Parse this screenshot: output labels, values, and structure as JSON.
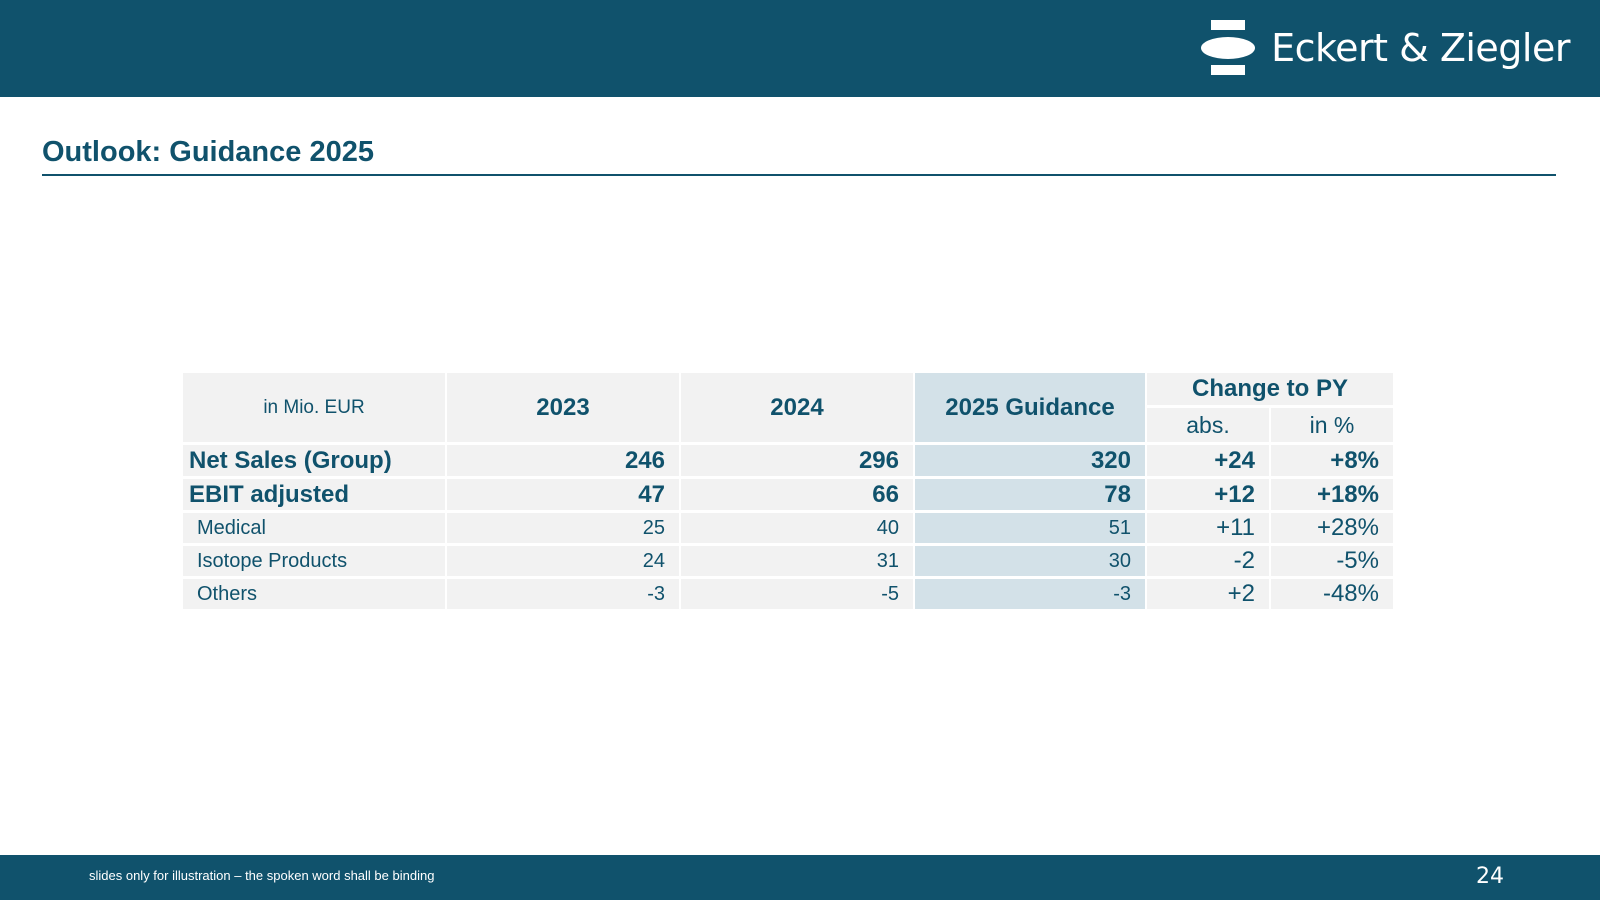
{
  "header": {
    "brand_name": "Eckert & Ziegler",
    "logo_icon": "eckert-ziegler-logo-mark",
    "bar_color": "#10526c"
  },
  "title": "Outlook: Guidance 2025",
  "table": {
    "unit_label": "in Mio. EUR",
    "year_2023": "2023",
    "year_2024": "2024",
    "guidance_label": "2025 Guidance",
    "change_label": "Change to PY",
    "abs_label": "abs.",
    "pct_label": "in %",
    "rows": [
      {
        "label": "Net Sales (Group)",
        "y2023": "246",
        "y2024": "296",
        "g2025": "320",
        "abs": "+24",
        "pct": "+8%"
      },
      {
        "label": "EBIT adjusted",
        "y2023": "47",
        "y2024": "66",
        "g2025": "78",
        "abs": "+12",
        "pct": "+18%"
      },
      {
        "label": "Medical",
        "y2023": "25",
        "y2024": "40",
        "g2025": "51",
        "abs": "+11",
        "pct": "+28%"
      },
      {
        "label": "Isotope Products",
        "y2023": "24",
        "y2024": "31",
        "g2025": "30",
        "abs": "-2",
        "pct": "-5%"
      },
      {
        "label": "Others",
        "y2023": "-3",
        "y2024": "-5",
        "g2025": "-3",
        "abs": "+2",
        "pct": "-48%"
      }
    ],
    "guidance_color": "#d3e1e8",
    "cell_color": "#f2f2f2"
  },
  "footer": {
    "disclaimer": "slides only for illustration – the spoken word shall be binding",
    "page_number": "24"
  }
}
